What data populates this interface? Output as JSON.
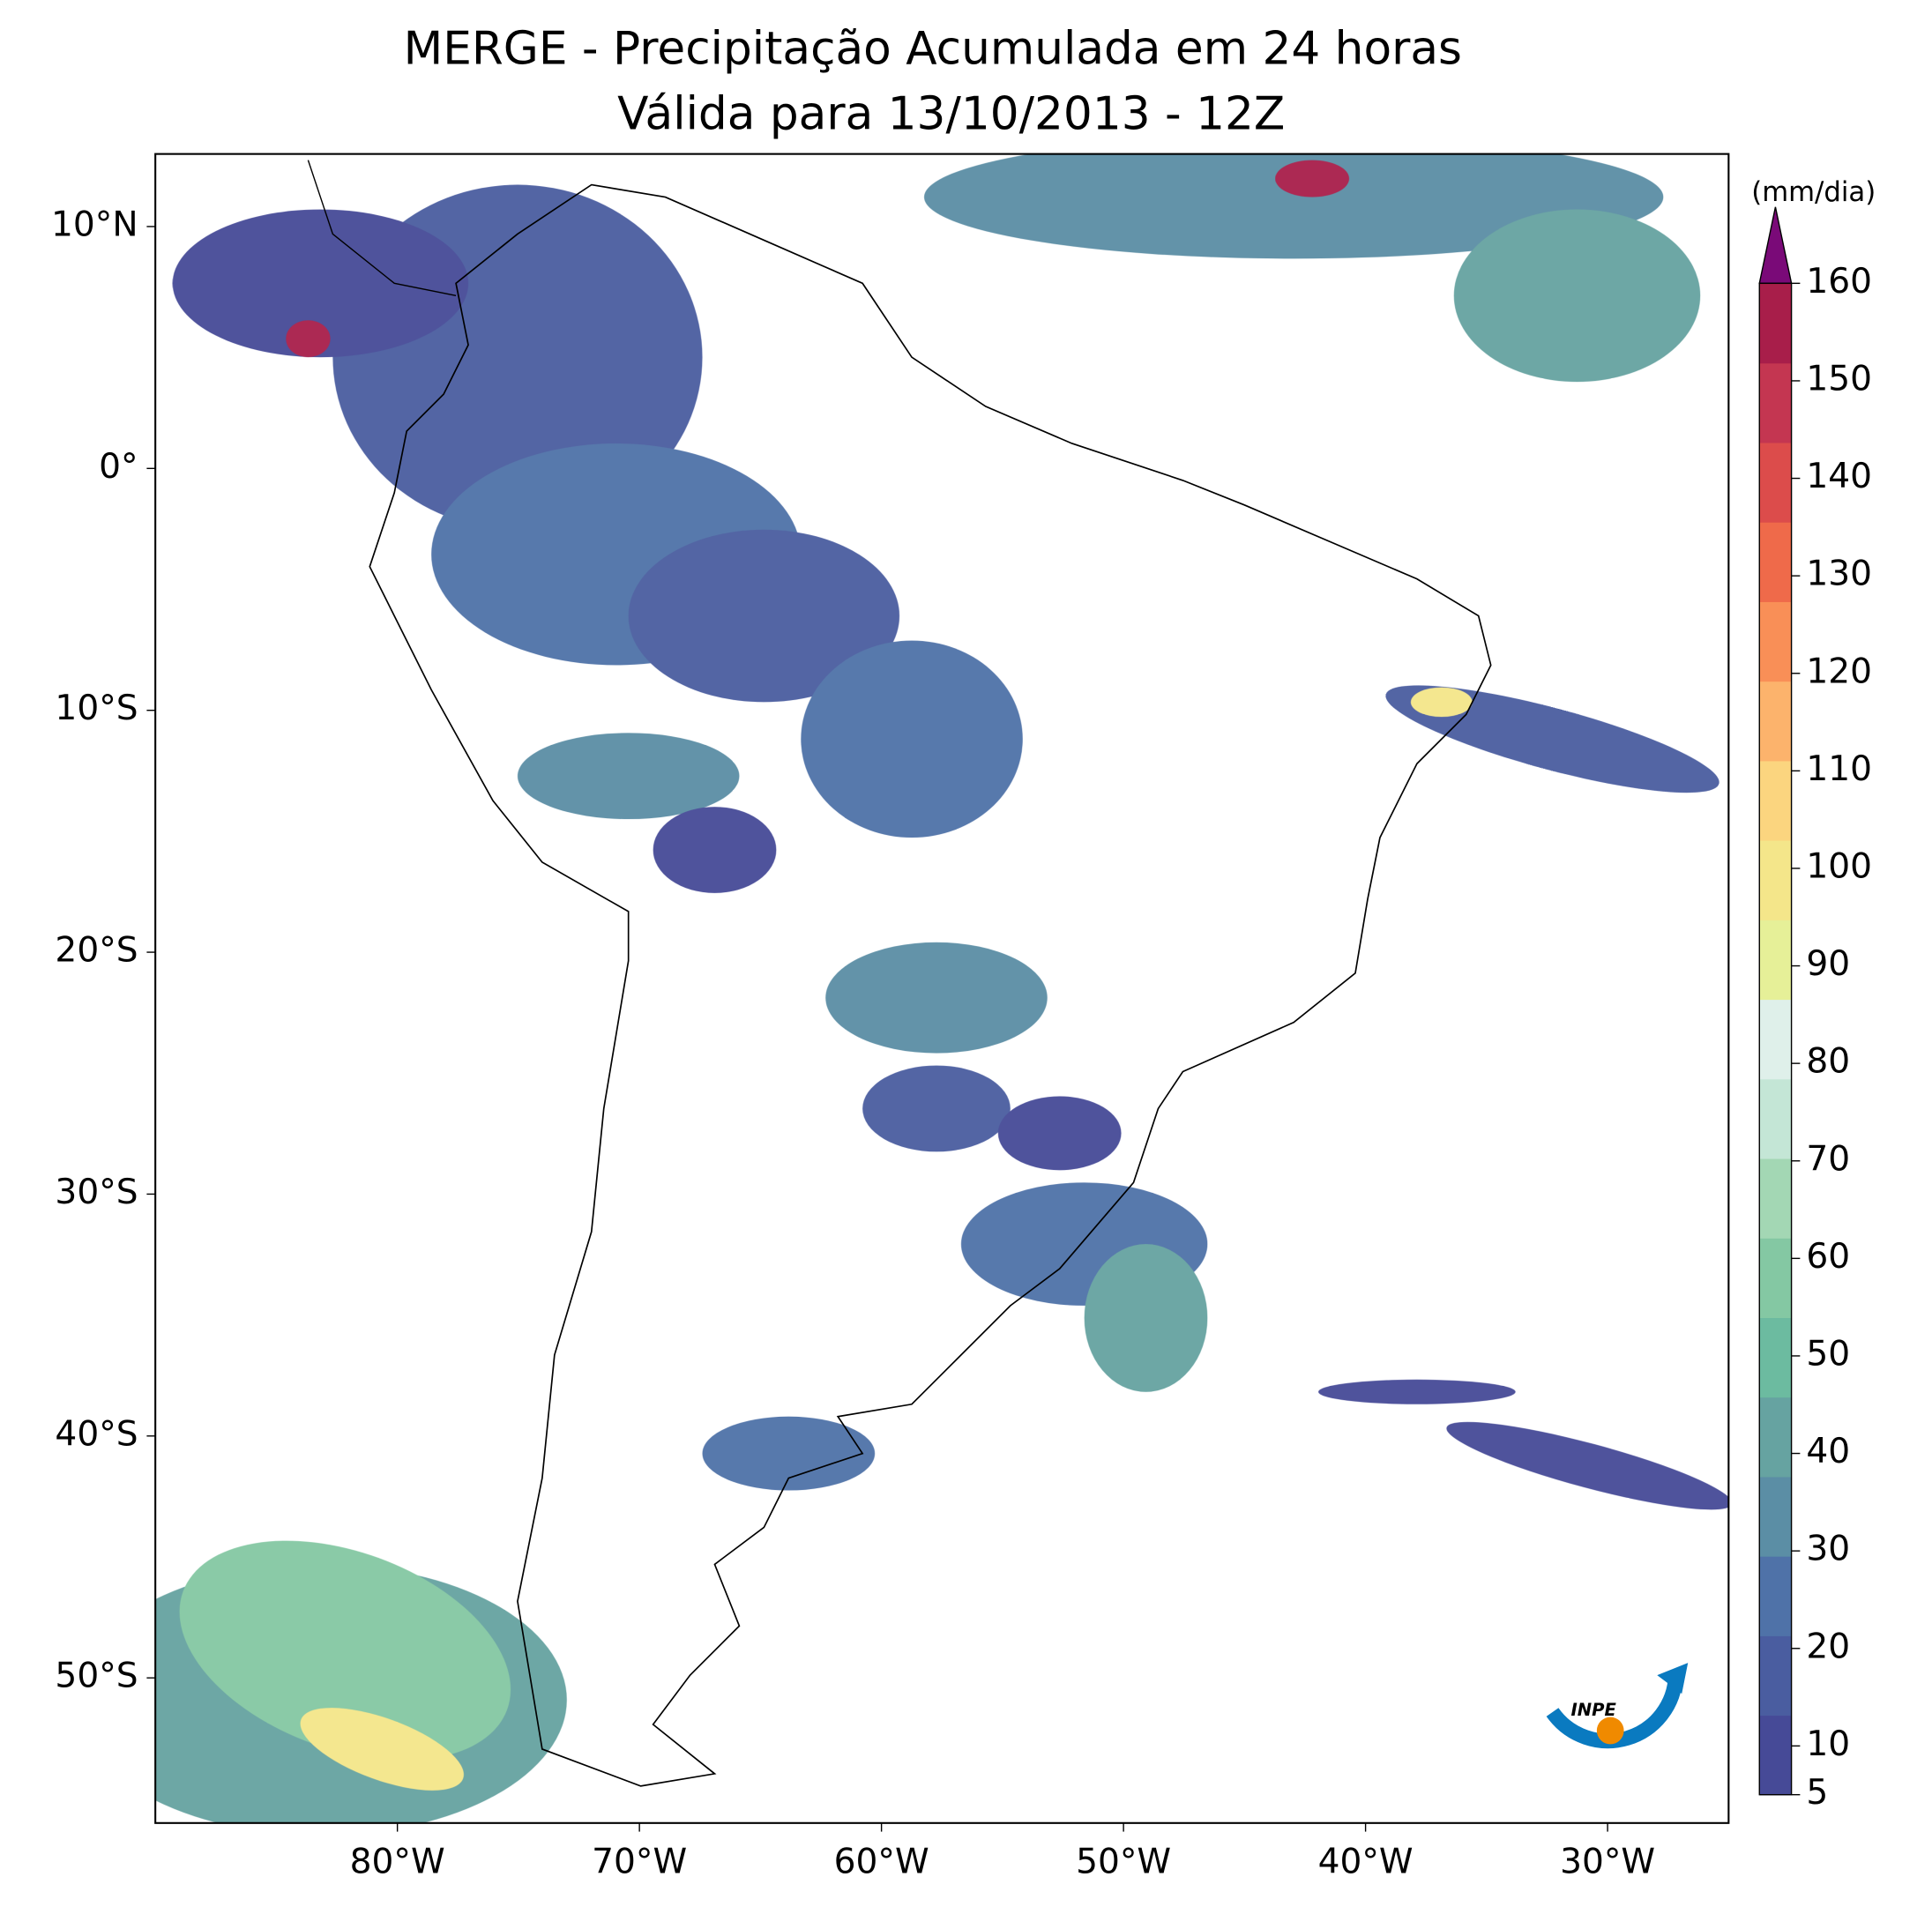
{
  "map": {
    "title": "MERGE - Precipitação Acumulada em 24 horas",
    "subtitle": "Válida para 13/10/2013 - 12Z",
    "xlim": [
      -90,
      -25
    ],
    "ylim": [
      -56,
      13
    ],
    "xticks": [
      {
        "value": -80,
        "label": "80°W"
      },
      {
        "value": -70,
        "label": "70°W"
      },
      {
        "value": -60,
        "label": "60°W"
      },
      {
        "value": -50,
        "label": "50°W"
      },
      {
        "value": -40,
        "label": "40°W"
      },
      {
        "value": -30,
        "label": "30°W"
      }
    ],
    "yticks": [
      {
        "value": 10,
        "label": "10°N"
      },
      {
        "value": 0,
        "label": "0°"
      },
      {
        "value": -10,
        "label": "10°S"
      },
      {
        "value": -20,
        "label": "20°S"
      },
      {
        "value": -30,
        "label": "30°S"
      },
      {
        "value": -40,
        "label": "40°S"
      },
      {
        "value": -50,
        "label": "50°S"
      }
    ],
    "colorbar": {
      "label": "(mm/dia)",
      "ticks": [
        5,
        10,
        20,
        30,
        40,
        50,
        60,
        70,
        80,
        90,
        100,
        110,
        120,
        130,
        140,
        150,
        160
      ],
      "colors": [
        "#464a97",
        "#4a5da0",
        "#4f72a8",
        "#5b8ea5",
        "#66a3a1",
        "#6cbba0",
        "#84c8a3",
        "#a3d7b4",
        "#c4e6d6",
        "#dff0ea",
        "#e6f098",
        "#f4e68a",
        "#fbd57f",
        "#fcb36c",
        "#f98f57",
        "#ef6a4a",
        "#dc4c4b",
        "#c43651",
        "#a81e4a"
      ],
      "extend_color": "#7a0a78"
    },
    "logo_text": "INPE"
  }
}
